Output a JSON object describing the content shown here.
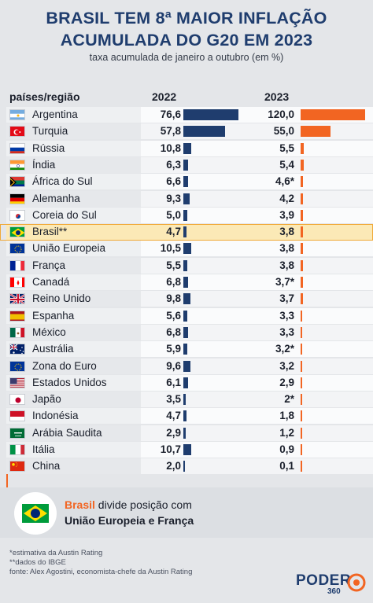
{
  "header": {
    "title_line1": "BRASIL TEM  8ª MAIOR INFLAÇÃO",
    "title_line2": "ACUMULADA DO G20 EM 2023",
    "subtitle": "taxa acumulada de janeiro a outubro (em %)"
  },
  "columns": {
    "country": "países/região",
    "y2022": "2022",
    "y2023": "2023"
  },
  "chart_data": {
    "type": "bar",
    "title": "BRASIL TEM  8ª MAIOR INFLAÇÃO ACUMULADA DO G20 EM 2023",
    "subtitle": "taxa acumulada de janeiro a outubro (em %)",
    "categories": [
      "Argentina",
      "Turquia",
      "Rússia",
      "Índia",
      "África do Sul",
      "Alemanha",
      "Coreia do Sul",
      "Brasil**",
      "União Europeia",
      "França",
      "Canadá",
      "Reino Unido",
      "Espanha",
      "México",
      "Austrália",
      "Zona do Euro",
      "Estados Unidos",
      "Japão",
      "Indonésia",
      "Arábia Saudita",
      "Itália",
      "China"
    ],
    "series": [
      {
        "name": "2022",
        "color": "#1f3d6e",
        "values": [
          76.6,
          57.8,
          10.8,
          6.3,
          6.6,
          9.3,
          5.0,
          4.7,
          10.5,
          5.5,
          6.8,
          9.8,
          5.6,
          6.8,
          5.9,
          9.6,
          6.1,
          3.5,
          4.7,
          2.9,
          10.7,
          2.0
        ]
      },
      {
        "name": "2023",
        "color": "#f26522",
        "values": [
          120.0,
          55.0,
          5.5,
          5.4,
          4.6,
          4.2,
          3.9,
          3.8,
          3.8,
          3.8,
          3.7,
          3.7,
          3.3,
          3.3,
          3.2,
          3.2,
          2.9,
          2.0,
          1.8,
          1.2,
          0.9,
          0.1
        ]
      }
    ],
    "highlight": "Brasil**"
  },
  "rows": [
    {
      "name": "Argentina",
      "flag": "argentina-flag",
      "v22": "76,6",
      "v23": "120,0"
    },
    {
      "name": "Turquia",
      "flag": "turkey-flag",
      "v22": "57,8",
      "v23": "55,0"
    },
    {
      "name": "Rússia",
      "flag": "russia-flag",
      "v22": "10,8",
      "v23": "5,5"
    },
    {
      "name": "Índia",
      "flag": "india-flag",
      "v22": "6,3",
      "v23": "5,4"
    },
    {
      "name": "África do Sul",
      "flag": "south-africa-flag",
      "v22": "6,6",
      "v23": "4,6*"
    },
    {
      "name": "Alemanha",
      "flag": "germany-flag",
      "v22": "9,3",
      "v23": "4,2"
    },
    {
      "name": "Coreia do Sul",
      "flag": "south-korea-flag",
      "v22": "5,0",
      "v23": "3,9"
    },
    {
      "name": "Brasil**",
      "flag": "brazil-flag",
      "v22": "4,7",
      "v23": "3,8"
    },
    {
      "name": "União Europeia",
      "flag": "eu-flag",
      "v22": "10,5",
      "v23": "3,8"
    },
    {
      "name": "França",
      "flag": "france-flag",
      "v22": "5,5",
      "v23": "3,8"
    },
    {
      "name": "Canadá",
      "flag": "canada-flag",
      "v22": "6,8",
      "v23": "3,7*"
    },
    {
      "name": "Reino Unido",
      "flag": "uk-flag",
      "v22": "9,8",
      "v23": "3,7"
    },
    {
      "name": "Espanha",
      "flag": "spain-flag",
      "v22": "5,6",
      "v23": "3,3"
    },
    {
      "name": "México",
      "flag": "mexico-flag",
      "v22": "6,8",
      "v23": "3,3"
    },
    {
      "name": "Austrália",
      "flag": "australia-flag",
      "v22": "5,9",
      "v23": "3,2*"
    },
    {
      "name": "Zona do Euro",
      "flag": "eu-flag",
      "v22": "9,6",
      "v23": "3,2"
    },
    {
      "name": "Estados Unidos",
      "flag": "usa-flag",
      "v22": "6,1",
      "v23": "2,9"
    },
    {
      "name": "Japão",
      "flag": "japan-flag",
      "v22": "3,5",
      "v23": "2*"
    },
    {
      "name": "Indonésia",
      "flag": "indonesia-flag",
      "v22": "4,7",
      "v23": "1,8"
    },
    {
      "name": "Arábia Saudita",
      "flag": "saudi-arabia-flag",
      "v22": "2,9",
      "v23": "1,2"
    },
    {
      "name": "Itália",
      "flag": "italy-flag",
      "v22": "10,7",
      "v23": "0,9"
    },
    {
      "name": "China",
      "flag": "china-flag",
      "v22": "2,0",
      "v23": "0,1"
    }
  ],
  "callout": {
    "brasil": "Brasil",
    "text1_rest": " divide posição com",
    "text2": "União Europeia e França"
  },
  "notes": {
    "n1": "*estimativa da Austin Rating",
    "n2": "**dados do IBGE",
    "source": "fonte: Alex Agostini, economista-chefe da Austin Rating"
  },
  "logo": {
    "name": "PODER",
    "suffix": "360"
  },
  "colors": {
    "navy": "#1f3d6e",
    "orange": "#f26522",
    "highlight": "#fbe9b6"
  }
}
